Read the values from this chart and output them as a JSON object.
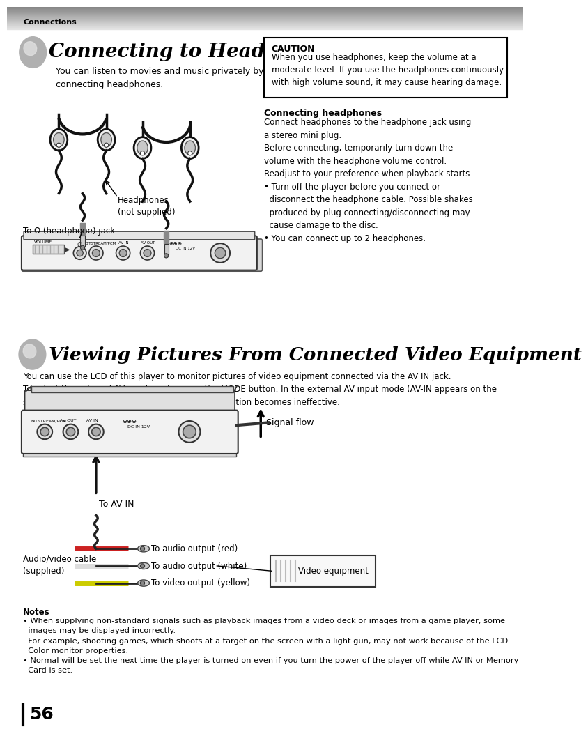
{
  "page_bg": "#ffffff",
  "header_text": "Connections",
  "section1_title": "Connecting to Headphones",
  "section1_subtitle": "You can listen to movies and music privately by\nconnecting headphones.",
  "caution_title": "CAUTION",
  "caution_text": "When you use headphones, keep the volume at a\nmoderate level. If you use the headphones continuously\nwith high volume sound, it may cause hearing damage.",
  "connecting_hphones_title": "Connecting headphones",
  "connecting_hphones_text": "Connect headphones to the headphone jack using\na stereo mini plug.\nBefore connecting, temporarily turn down the\nvolume with the headphone volume control.\nReadjust to your preference when playback starts.\n• Turn off the player before you connect or\n  disconnect the headphone cable. Possible shakes\n  produced by plug connecting/disconnecting may\n  cause damage to the disc.\n• You can connect up to 2 headphones.",
  "label_headphones": "Headphones\n(not supplied)",
  "label_jack": "To Ω (headphone) jack",
  "section2_title": "Viewing Pictures From Connected Video Equipment",
  "section2_text": "You can use the LCD of this player to monitor pictures of video equipment connected via the AV IN jack.\nTo select the external AV input mode, press the MODE button. In the external AV input mode (AV-IN appears on the\nscreen), screen saver function/auto power OFF function becomes ineffective.",
  "label_signal_flow": "Signal flow",
  "label_to_av_in": "To AV IN",
  "label_audio_cable": "Audio/video cable\n(supplied)",
  "label_audio_red": "To audio output (red)",
  "label_audio_white": "To audio output (white)",
  "label_video_yellow": "To video output (yellow)",
  "label_video_equipment": "Video equipment",
  "notes_title": "Notes",
  "notes_text": "• When supplying non-standard signals such as playback images from a video deck or images from a game player, some\n  images may be displayed incorrectly.\n  For example, shooting games, which shoots at a target on the screen with a light gun, may not work because of the LCD\n  Color monitor properties.\n• Normal will be set the next time the player is turned on even if you turn the power of the player off while AV-IN or Memory\n  Card is set.",
  "page_number": "56"
}
